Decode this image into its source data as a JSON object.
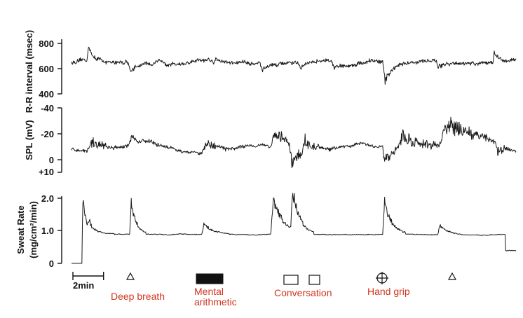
{
  "colors": {
    "trace": "#1a1a1a",
    "event_label": "#d0351f",
    "axis": "#111111"
  },
  "chart_data": [
    {
      "type": "line",
      "ylabel": "R-R interval (msec)",
      "yticks": [
        "800",
        "600",
        "400"
      ],
      "ytick_values": [
        800,
        600,
        400
      ],
      "ylim": [
        400,
        850
      ],
      "baseline": 660,
      "noise": 28,
      "x_unit": "min",
      "x_range_min": [
        0,
        29
      ],
      "events": [
        {
          "t": 1.0,
          "dy": 130,
          "dur": 0.4
        },
        {
          "t": 3.7,
          "dy": -60,
          "dur": 0.5
        },
        {
          "t": 9.3,
          "dy": 50,
          "dur": 0.4
        },
        {
          "t": 12.3,
          "dy": -50,
          "dur": 0.5
        },
        {
          "t": 14.8,
          "dy": -45,
          "dur": 0.4
        },
        {
          "t": 17.0,
          "dy": -55,
          "dur": 0.5
        },
        {
          "t": 20.3,
          "dy": -150,
          "dur": 0.6
        },
        {
          "t": 23.8,
          "dy": -70,
          "dur": 0.5
        },
        {
          "t": 27.5,
          "dy": 60,
          "dur": 0.3
        }
      ]
    },
    {
      "type": "line",
      "ylabel": "SPL (mV)",
      "yticks": [
        "-40",
        "-20",
        "0",
        "+10"
      ],
      "ytick_values": [
        -40,
        -20,
        0,
        10
      ],
      "ylim_inverted": [
        -40,
        10
      ],
      "baseline": -8,
      "noise": 2,
      "x_unit": "min",
      "x_range_min": [
        0,
        29
      ],
      "events": [
        {
          "t": 1.0,
          "dy": -8,
          "dur": 1.5
        },
        {
          "t": 3.7,
          "dy": -6,
          "dur": 1.0
        },
        {
          "t": 8.5,
          "dy": -7,
          "dur": 1.2
        },
        {
          "t": 13.0,
          "dy": -12,
          "dur": 1.2
        },
        {
          "t": 14.2,
          "dy": 14,
          "dur": 0.6
        },
        {
          "t": 15.0,
          "dy": -10,
          "dur": 1.0
        },
        {
          "t": 20.3,
          "dy": 12,
          "dur": 0.5
        },
        {
          "t": 21.0,
          "dy": -12,
          "dur": 2.5
        },
        {
          "t": 24.0,
          "dy": -16,
          "dur": 2.0
        },
        {
          "t": 27.7,
          "dy": 8,
          "dur": 0.4
        }
      ]
    },
    {
      "type": "line",
      "ylabel": "Sweat Rate",
      "ylabel_units": "(mg/cm²/min)",
      "yticks": [
        "2.0",
        "1.0",
        "0"
      ],
      "ytick_values": [
        2.0,
        1.0,
        0
      ],
      "ylim": [
        0,
        2.1
      ],
      "baseline": 0.9,
      "noise": 0.02,
      "x_unit": "min",
      "x_range_min": [
        0,
        29
      ],
      "pre_segment": {
        "t_end": 0.7,
        "value": 0.0
      },
      "events": [
        {
          "t": 0.7,
          "dy": 1.2,
          "dur": 0.2
        },
        {
          "t": 1.0,
          "dy": 0.3,
          "dur": 0.6
        },
        {
          "t": 3.8,
          "dy": 1.0,
          "dur": 0.35
        },
        {
          "t": 8.5,
          "dy": 0.35,
          "dur": 0.6
        },
        {
          "t": 13.0,
          "dy": 1.1,
          "dur": 0.7
        },
        {
          "t": 14.3,
          "dy": 1.2,
          "dur": 0.5
        },
        {
          "t": 20.3,
          "dy": 1.0,
          "dur": 0.5
        },
        {
          "t": 23.9,
          "dy": 0.3,
          "dur": 0.5
        }
      ],
      "post_segment": {
        "t_start": 28.3,
        "value": 0.4
      }
    }
  ],
  "scale_bar": {
    "label": "2min",
    "minutes": 2
  },
  "event_markers": [
    {
      "name": "deep-breath",
      "symbol": "triangle",
      "t": 3.3,
      "label": "Deep breath"
    },
    {
      "name": "mental-arithmetic",
      "symbol": "filled-rect",
      "t": 8.0,
      "label": "Mental arithmetic",
      "label_lines": [
        "Mental",
        "arithmetic"
      ]
    },
    {
      "name": "conversation",
      "symbol": "open-squares",
      "t": 14.0,
      "label": "Conversation"
    },
    {
      "name": "hand-grip",
      "symbol": "circle-cross",
      "t": 20.0,
      "label": "Hand grip"
    },
    {
      "name": "deep-breath-2",
      "symbol": "triangle",
      "t": 24.8,
      "label": ""
    }
  ]
}
